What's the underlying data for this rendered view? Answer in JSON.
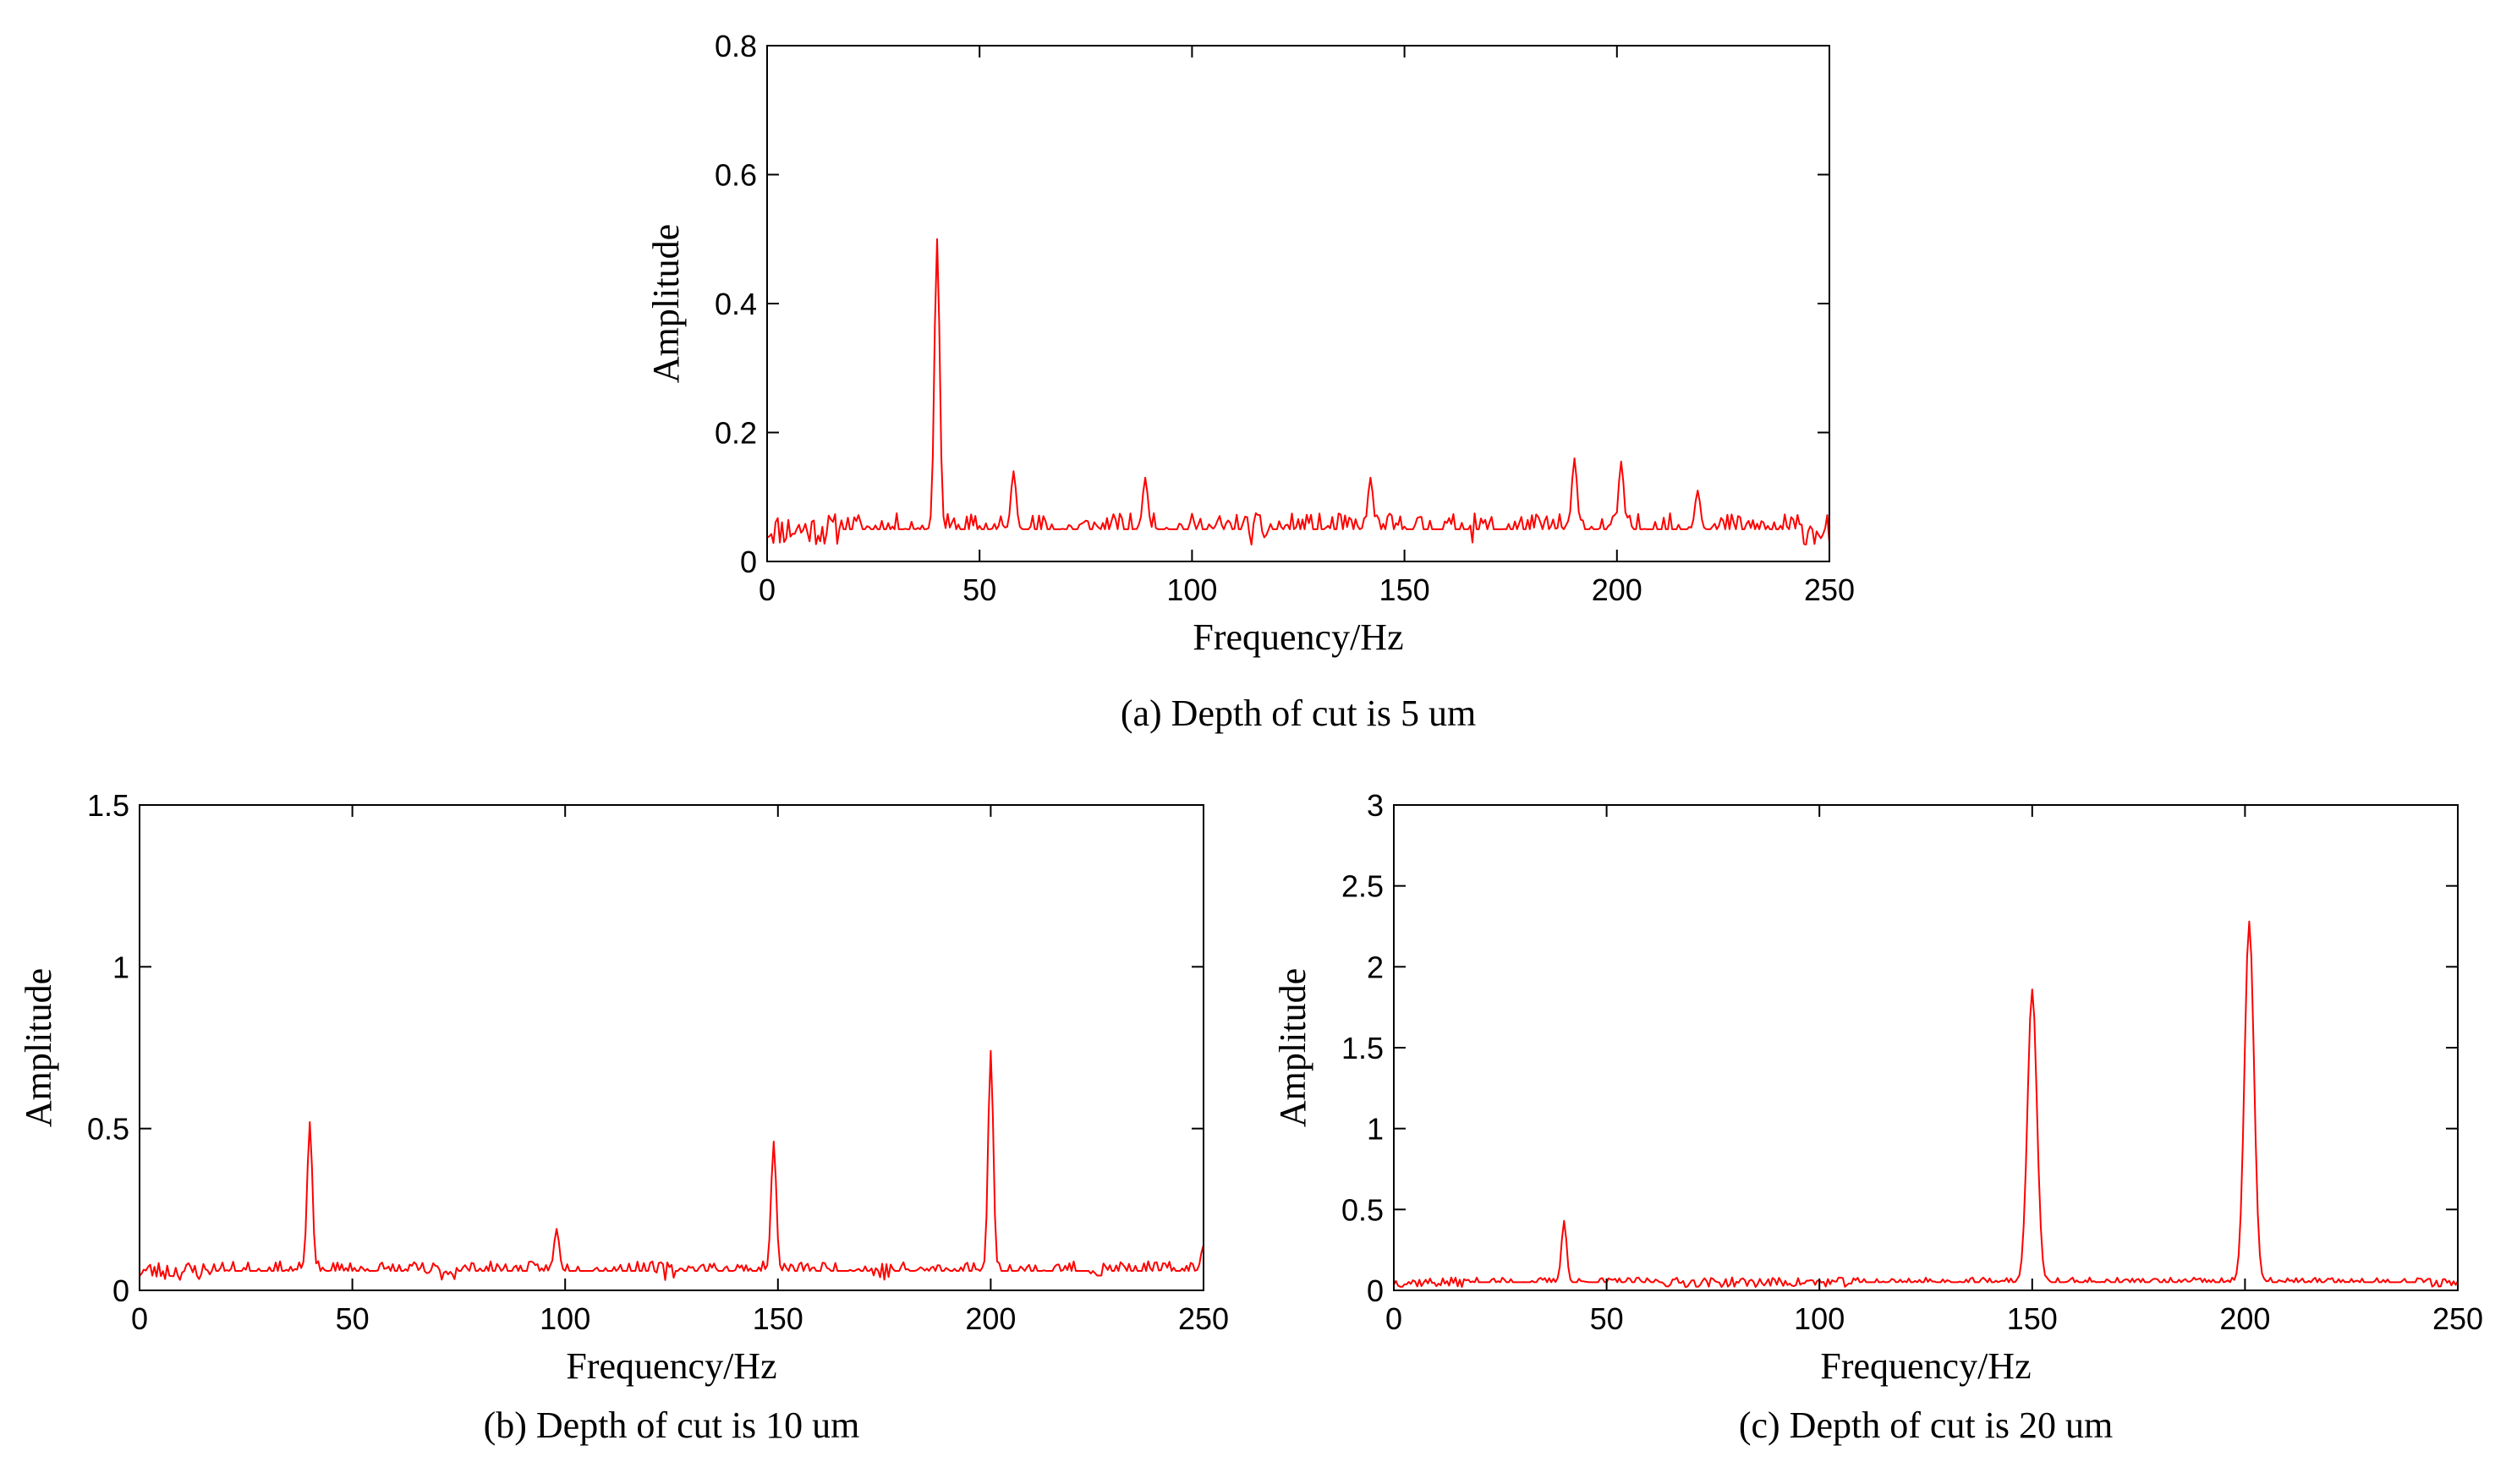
{
  "colors": {
    "series": "#ff0000",
    "axis": "#000000"
  },
  "chart_data": [
    {
      "type": "line",
      "caption": "(a) Depth of cut is 5 um",
      "xlabel": "Frequency/Hz",
      "ylabel": "Amplitude",
      "xlim": [
        0,
        250
      ],
      "ylim": [
        0,
        0.8
      ],
      "xticks": [
        0,
        50,
        100,
        150,
        200,
        250
      ],
      "yticks": [
        0,
        0.2,
        0.4,
        0.6,
        0.8
      ],
      "grid": false,
      "series": [
        {
          "color": "#ff0000",
          "baseline": 0.05,
          "noise": 0.025,
          "seed": 11,
          "peaks": [
            {
              "x": 40,
              "y": 0.5
            },
            {
              "x": 58,
              "y": 0.14
            },
            {
              "x": 89,
              "y": 0.13
            },
            {
              "x": 142,
              "y": 0.13
            },
            {
              "x": 190,
              "y": 0.16
            },
            {
              "x": 201,
              "y": 0.155
            },
            {
              "x": 219,
              "y": 0.11
            }
          ]
        }
      ]
    },
    {
      "type": "line",
      "caption": "(b) Depth of cut is 10 um",
      "xlabel": "Frequency/Hz",
      "ylabel": "Amplitude",
      "xlim": [
        0,
        250
      ],
      "ylim": [
        0,
        1.5
      ],
      "xticks": [
        0,
        50,
        100,
        150,
        200,
        250
      ],
      "yticks": [
        0,
        0.5,
        1,
        1.5
      ],
      "grid": false,
      "series": [
        {
          "color": "#ff0000",
          "baseline": 0.06,
          "noise": 0.03,
          "seed": 23,
          "peaks": [
            {
              "x": 40,
              "y": 0.52
            },
            {
              "x": 98,
              "y": 0.19
            },
            {
              "x": 149,
              "y": 0.46
            },
            {
              "x": 200,
              "y": 0.74
            },
            {
              "x": 250,
              "y": 0.14
            }
          ]
        }
      ]
    },
    {
      "type": "line",
      "caption": "(c) Depth of cut is 20 um",
      "xlabel": "Frequency/Hz",
      "ylabel": "Amplitude",
      "xlim": [
        0,
        250
      ],
      "ylim": [
        0,
        3
      ],
      "xticks": [
        0,
        50,
        100,
        150,
        200,
        250
      ],
      "yticks": [
        0,
        0.5,
        1,
        1.5,
        2,
        2.5,
        3
      ],
      "grid": false,
      "series": [
        {
          "color": "#ff0000",
          "baseline": 0.05,
          "noise": 0.03,
          "seed": 37,
          "peaks": [
            {
              "x": 40,
              "y": 0.43
            },
            {
              "x": 150,
              "y": 1.86
            },
            {
              "x": 201,
              "y": 2.28
            }
          ]
        }
      ]
    }
  ]
}
